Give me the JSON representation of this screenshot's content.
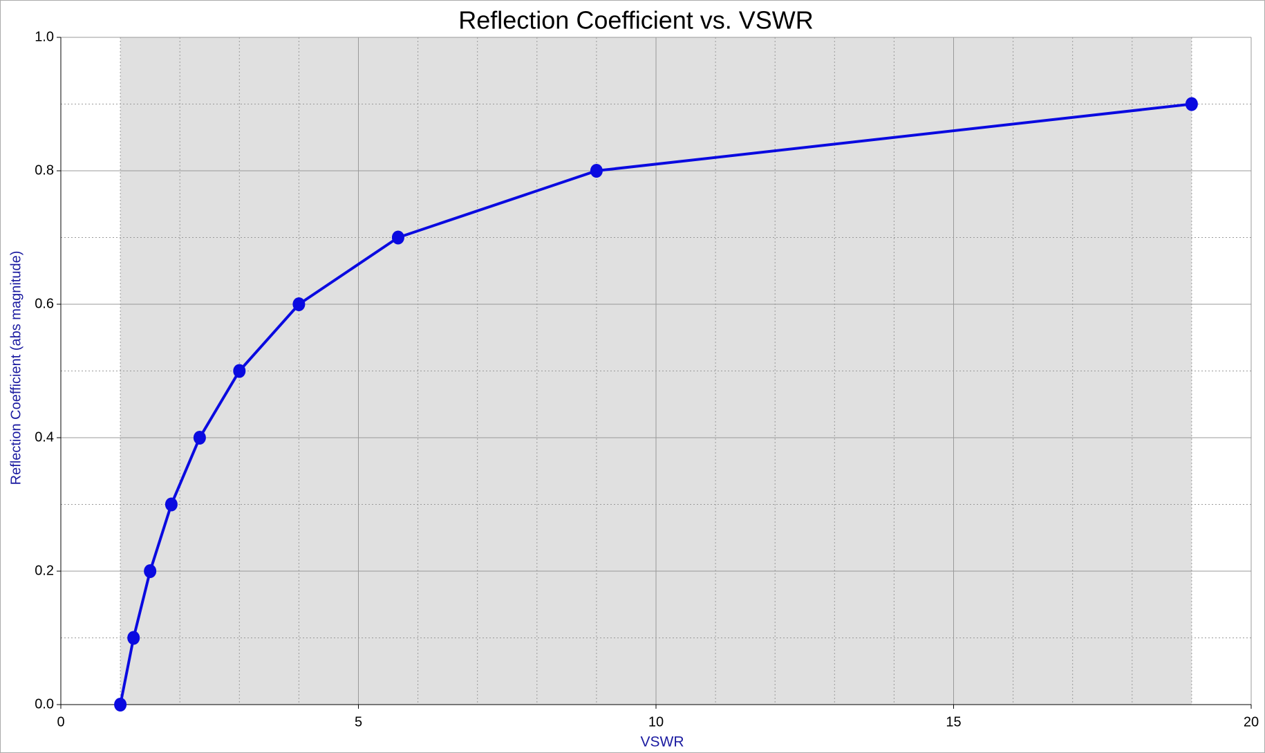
{
  "chart_data": {
    "type": "line",
    "title": "Reflection Coefficient  vs.  VSWR",
    "x_label": "VSWR",
    "y_label": "Reflection Coefficient (abs magnitude)",
    "series": [
      {
        "name": "Reflection Coefficient",
        "color": "#0a0ae0",
        "x": [
          1,
          1.222,
          1.5,
          1.857,
          2.333,
          3,
          4,
          5.667,
          9,
          19
        ],
        "values": [
          0,
          0.1,
          0.2,
          0.3,
          0.4,
          0.5,
          0.6,
          0.7,
          0.8,
          0.9
        ]
      }
    ],
    "xlim": [
      0,
      20
    ],
    "xticks": [
      0,
      5,
      10,
      15,
      20
    ],
    "ylim": [
      0,
      1
    ],
    "yticks": [
      {
        "value": 0,
        "label": "0.0"
      },
      {
        "value": 0.2,
        "label": "0.2"
      },
      {
        "value": 0.4,
        "label": "0.4"
      },
      {
        "value": 0.6,
        "label": "0.6"
      },
      {
        "value": 0.8,
        "label": "0.8"
      },
      {
        "value": 1,
        "label": "1.0"
      }
    ],
    "x_minor_step": 1,
    "y_minor_step": 0.1,
    "shaded_xrange": [
      1,
      19
    ],
    "shade_color": "#e0e0e0",
    "grid": true
  }
}
